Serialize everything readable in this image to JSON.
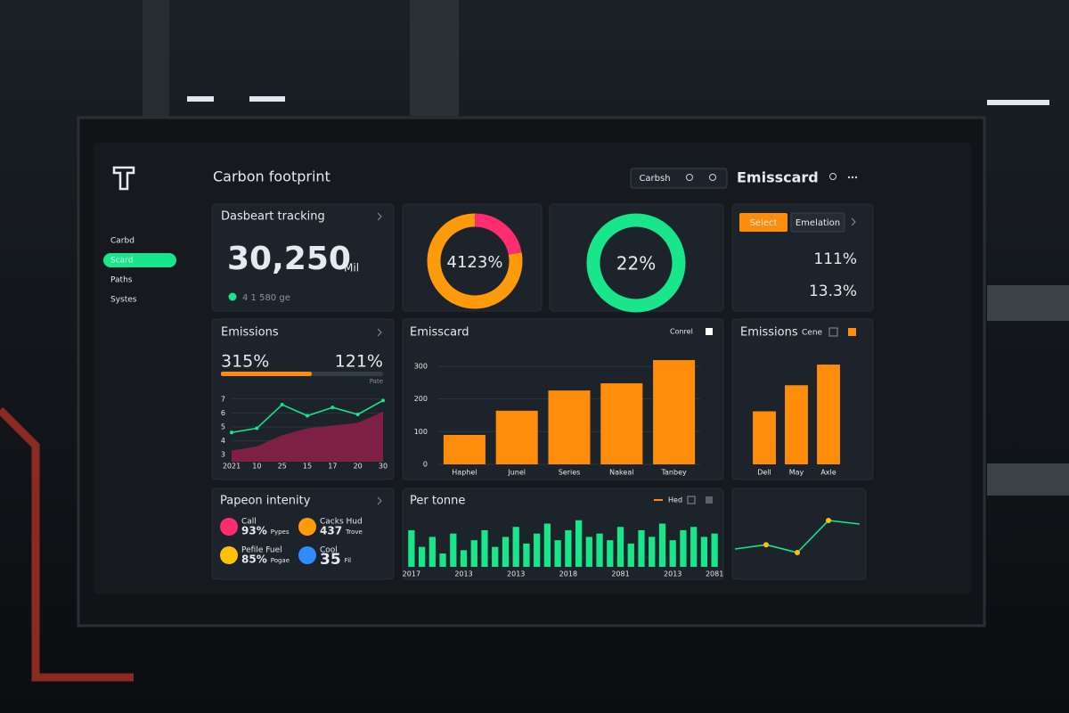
{
  "header": {
    "title": "Carbon footprint",
    "search": "Carbsh",
    "panel_title": "Emisscard"
  },
  "sidebar": {
    "items": [
      "Carbd",
      "Scard",
      "Paths",
      "Systes"
    ],
    "active": 1
  },
  "cards": {
    "tracking": {
      "title": "Dasbeart tracking",
      "value": "30,250",
      "unit": "Mil",
      "note": "4 1 580 ge"
    },
    "donut_a": {
      "label": "4123%",
      "segments": [
        {
          "color": "#ff2d6f",
          "value": 22
        },
        {
          "color": "#ff9a0a",
          "value": 78
        }
      ]
    },
    "donut_b": {
      "label": "22%",
      "color": "#19e58a"
    },
    "tabs": {
      "items": [
        "Select",
        "Emelation"
      ],
      "active": 0,
      "values": [
        "111%",
        "13.3%"
      ]
    },
    "emissions": {
      "title": "Emissions",
      "left": "315%",
      "right": "121%",
      "progress": {
        "value": 56,
        "lim": [
          0,
          100
        ],
        "label": "Pate",
        "color": "#ff8c0a"
      }
    },
    "intensity": {
      "title": "Papeon intenity",
      "items": [
        {
          "label": "Call",
          "value": "93%",
          "sub": "Pypes",
          "color": "#ff2d6f"
        },
        {
          "label": "Cacks Hud",
          "value": "437",
          "sub": "Trove",
          "color": "#ff9a0a"
        },
        {
          "label": "Pefile Fuel",
          "value": "85%",
          "sub": "Pogae",
          "color": "#ffc107"
        },
        {
          "label": "Cool",
          "value": "35",
          "sub": "Fil",
          "color": "#2f8cff"
        }
      ]
    }
  },
  "chart_data": [
    {
      "type": "line",
      "categories": [
        "2021",
        "10",
        "25",
        "15",
        "17",
        "20",
        "30"
      ],
      "ylim": [
        2.5,
        7.5
      ],
      "yticks": [
        3,
        4,
        5,
        6,
        7
      ],
      "series": [
        {
          "type": "area",
          "color": "#8a1f47",
          "values": [
            3.3,
            3.6,
            4.4,
            4.9,
            5.1,
            5.3,
            6.1
          ]
        },
        {
          "type": "line",
          "color": "#19e58a",
          "values": [
            4.6,
            4.9,
            6.6,
            5.8,
            6.4,
            5.9,
            6.9
          ]
        }
      ]
    },
    {
      "type": "bar",
      "title": "Emisscard",
      "categories": [
        "Haphel",
        "Junel",
        "Series",
        "Nakeal",
        "Tanbey"
      ],
      "ylim": [
        0,
        330
      ],
      "yticks": [
        0,
        100,
        200,
        300
      ],
      "series": [
        {
          "name": "Conrel",
          "color": "#ff8c0a",
          "values": [
            90,
            164,
            226,
            248,
            319
          ]
        }
      ]
    },
    {
      "type": "bar",
      "title": "Emissions",
      "subtitle": "Cene",
      "categories": [
        "Dell",
        "May",
        "Axle"
      ],
      "ylim": [
        0,
        120
      ],
      "series": [
        {
          "color": "#ff8c0a",
          "values": [
            59,
            88,
            111
          ]
        }
      ]
    },
    {
      "type": "bar",
      "title": "Per tonne",
      "categories": [
        "2017",
        null,
        null,
        null,
        null,
        "2013",
        null,
        null,
        null,
        null,
        "2013",
        null,
        null,
        null,
        null,
        "2018",
        null,
        null,
        null,
        null,
        "2081",
        null,
        null,
        null,
        null,
        "2013",
        null,
        null,
        null,
        "2081"
      ],
      "ylim": [
        0,
        75
      ],
      "series": [
        {
          "name": "Hed",
          "color": "#19e58a",
          "values": [
            55,
            30,
            45,
            20,
            50,
            25,
            40,
            55,
            30,
            45,
            60,
            35,
            50,
            65,
            40,
            55,
            70,
            45,
            50,
            40,
            60,
            35,
            55,
            45,
            65,
            40,
            55,
            60,
            45,
            50
          ]
        }
      ]
    },
    {
      "type": "line",
      "ylim": [
        0,
        10
      ],
      "series": [
        {
          "color": "#19e58a",
          "marker": "#ffc107",
          "values": [
            3.0,
            3.6,
            2.5,
            7.0,
            6.5
          ]
        }
      ]
    }
  ]
}
